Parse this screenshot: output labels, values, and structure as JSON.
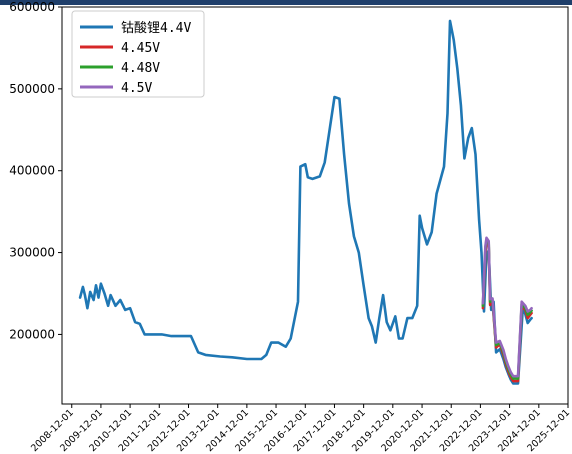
{
  "chart_data": {
    "type": "line",
    "title": "",
    "xlabel": "",
    "ylabel": "",
    "ylim": [
      115000,
      600000
    ],
    "yticks": [
      200000,
      300000,
      400000,
      500000,
      600000
    ],
    "ytick_labels": [
      "200000",
      "300000",
      "400000",
      "500000",
      "600000"
    ],
    "xticks": [
      "2008-12-01",
      "2009-12-01",
      "2010-12-01",
      "2011-12-01",
      "2012-12-01",
      "2013-12-01",
      "2014-12-01",
      "2015-12-01",
      "2016-12-01",
      "2017-12-01",
      "2018-12-01",
      "2019-12-01",
      "2020-12-01",
      "2021-12-01",
      "2022-12-01",
      "2023-12-01",
      "2024-12-01",
      "2025-12-01"
    ],
    "xlim": [
      "2008-08-01",
      "2025-12-01"
    ],
    "grid": false,
    "legend_position": "top-left",
    "series": [
      {
        "name": "钴酸锂4.4V",
        "color": "#1f77b4",
        "points": [
          [
            "2009-03-15",
            245000
          ],
          [
            "2009-04-20",
            258000
          ],
          [
            "2009-05-15",
            248000
          ],
          [
            "2009-06-15",
            232000
          ],
          [
            "2009-07-20",
            252000
          ],
          [
            "2009-09-01",
            242000
          ],
          [
            "2009-10-01",
            260000
          ],
          [
            "2009-11-01",
            245000
          ],
          [
            "2009-12-01",
            262000
          ],
          [
            "2010-01-15",
            250000
          ],
          [
            "2010-03-01",
            235000
          ],
          [
            "2010-04-01",
            248000
          ],
          [
            "2010-06-01",
            235000
          ],
          [
            "2010-08-01",
            242000
          ],
          [
            "2010-10-01",
            230000
          ],
          [
            "2010-12-01",
            232000
          ],
          [
            "2011-02-01",
            215000
          ],
          [
            "2011-04-01",
            213000
          ],
          [
            "2011-06-01",
            200000
          ],
          [
            "2012-01-01",
            200000
          ],
          [
            "2012-05-01",
            198000
          ],
          [
            "2013-01-01",
            198000
          ],
          [
            "2013-04-01",
            178000
          ],
          [
            "2013-07-01",
            175000
          ],
          [
            "2014-01-01",
            173000
          ],
          [
            "2014-06-01",
            172000
          ],
          [
            "2014-12-01",
            170000
          ],
          [
            "2015-06-01",
            170000
          ],
          [
            "2015-08-01",
            175000
          ],
          [
            "2015-10-01",
            190000
          ],
          [
            "2016-01-01",
            190000
          ],
          [
            "2016-04-01",
            185000
          ],
          [
            "2016-06-01",
            195000
          ],
          [
            "2016-09-01",
            240000
          ],
          [
            "2016-10-01",
            405000
          ],
          [
            "2016-12-01",
            408000
          ],
          [
            "2017-01-01",
            392000
          ],
          [
            "2017-03-01",
            390000
          ],
          [
            "2017-06-01",
            393000
          ],
          [
            "2017-08-01",
            410000
          ],
          [
            "2017-10-01",
            450000
          ],
          [
            "2017-12-01",
            490000
          ],
          [
            "2018-02-01",
            488000
          ],
          [
            "2018-04-01",
            420000
          ],
          [
            "2018-06-01",
            360000
          ],
          [
            "2018-08-01",
            320000
          ],
          [
            "2018-10-01",
            300000
          ],
          [
            "2018-12-01",
            260000
          ],
          [
            "2019-02-01",
            220000
          ],
          [
            "2019-03-15",
            210000
          ],
          [
            "2019-05-01",
            190000
          ],
          [
            "2019-06-15",
            220000
          ],
          [
            "2019-08-01",
            248000
          ],
          [
            "2019-09-15",
            215000
          ],
          [
            "2019-11-01",
            205000
          ],
          [
            "2020-01-01",
            222000
          ],
          [
            "2020-02-15",
            195000
          ],
          [
            "2020-04-01",
            195000
          ],
          [
            "2020-06-01",
            220000
          ],
          [
            "2020-08-01",
            220000
          ],
          [
            "2020-10-01",
            235000
          ],
          [
            "2020-11-01",
            345000
          ],
          [
            "2020-12-01",
            330000
          ],
          [
            "2021-02-01",
            310000
          ],
          [
            "2021-04-01",
            325000
          ],
          [
            "2021-06-01",
            372000
          ],
          [
            "2021-09-01",
            405000
          ],
          [
            "2021-10-15",
            470000
          ],
          [
            "2021-11-15",
            583000
          ],
          [
            "2022-01-01",
            560000
          ],
          [
            "2022-02-15",
            525000
          ],
          [
            "2022-04-01",
            480000
          ],
          [
            "2022-05-15",
            415000
          ],
          [
            "2022-07-01",
            440000
          ],
          [
            "2022-08-15",
            452000
          ],
          [
            "2022-10-01",
            420000
          ],
          [
            "2022-11-15",
            340000
          ],
          [
            "2022-12-15",
            300000
          ],
          [
            "2023-01-15",
            228000
          ],
          [
            "2023-02-15",
            300000
          ],
          [
            "2023-03-15",
            302000
          ],
          [
            "2023-04-15",
            230000
          ],
          [
            "2023-05-15",
            240000
          ],
          [
            "2023-06-15",
            178000
          ],
          [
            "2023-08-01",
            182000
          ],
          [
            "2023-09-15",
            170000
          ],
          [
            "2023-10-15",
            160000
          ],
          [
            "2023-11-15",
            152000
          ],
          [
            "2023-12-15",
            145000
          ],
          [
            "2024-01-15",
            140000
          ],
          [
            "2024-03-15",
            140000
          ],
          [
            "2024-05-15",
            232000
          ],
          [
            "2024-06-15",
            225000
          ],
          [
            "2024-07-15",
            214000
          ],
          [
            "2024-08-15",
            218000
          ],
          [
            "2024-09-01",
            220000
          ]
        ]
      },
      {
        "name": "4.45V",
        "color": "#d62728",
        "points": [
          [
            "2023-01-01",
            232000
          ],
          [
            "2023-02-01",
            300000
          ],
          [
            "2023-02-15",
            312000
          ],
          [
            "2023-03-15",
            308000
          ],
          [
            "2023-04-01",
            236000
          ],
          [
            "2023-05-01",
            240000
          ],
          [
            "2023-06-15",
            184000
          ],
          [
            "2023-08-01",
            188000
          ],
          [
            "2023-09-15",
            175000
          ],
          [
            "2023-10-15",
            164000
          ],
          [
            "2023-11-15",
            155000
          ],
          [
            "2023-12-15",
            148000
          ],
          [
            "2024-01-15",
            143000
          ],
          [
            "2024-03-15",
            143000
          ],
          [
            "2024-05-01",
            234000
          ],
          [
            "2024-06-15",
            230000
          ],
          [
            "2024-07-15",
            220000
          ],
          [
            "2024-08-15",
            224000
          ],
          [
            "2024-09-01",
            226000
          ]
        ]
      },
      {
        "name": "4.48V",
        "color": "#2ca02c",
        "points": [
          [
            "2023-01-01",
            235000
          ],
          [
            "2023-02-01",
            305000
          ],
          [
            "2023-02-15",
            316000
          ],
          [
            "2023-03-15",
            312000
          ],
          [
            "2023-04-01",
            240000
          ],
          [
            "2023-05-01",
            242000
          ],
          [
            "2023-06-15",
            187000
          ],
          [
            "2023-08-01",
            190000
          ],
          [
            "2023-09-15",
            178000
          ],
          [
            "2023-10-15",
            167000
          ],
          [
            "2023-11-15",
            158000
          ],
          [
            "2023-12-15",
            151000
          ],
          [
            "2024-01-15",
            146000
          ],
          [
            "2024-03-15",
            146000
          ],
          [
            "2024-05-01",
            237000
          ],
          [
            "2024-06-15",
            232000
          ],
          [
            "2024-07-15",
            224000
          ],
          [
            "2024-08-15",
            227000
          ],
          [
            "2024-09-01",
            229000
          ]
        ]
      },
      {
        "name": "4.5V",
        "color": "#9467bd",
        "points": [
          [
            "2023-01-01",
            238000
          ],
          [
            "2023-02-01",
            308000
          ],
          [
            "2023-02-15",
            318000
          ],
          [
            "2023-03-15",
            314000
          ],
          [
            "2023-04-01",
            243000
          ],
          [
            "2023-05-01",
            244000
          ],
          [
            "2023-06-15",
            190000
          ],
          [
            "2023-08-01",
            192000
          ],
          [
            "2023-09-15",
            181000
          ],
          [
            "2023-10-15",
            170000
          ],
          [
            "2023-11-15",
            161000
          ],
          [
            "2023-12-15",
            154000
          ],
          [
            "2024-01-15",
            149000
          ],
          [
            "2024-03-15",
            149000
          ],
          [
            "2024-05-01",
            240000
          ],
          [
            "2024-06-15",
            235000
          ],
          [
            "2024-07-15",
            228000
          ],
          [
            "2024-08-15",
            230000
          ],
          [
            "2024-09-01",
            232000
          ]
        ]
      }
    ]
  }
}
